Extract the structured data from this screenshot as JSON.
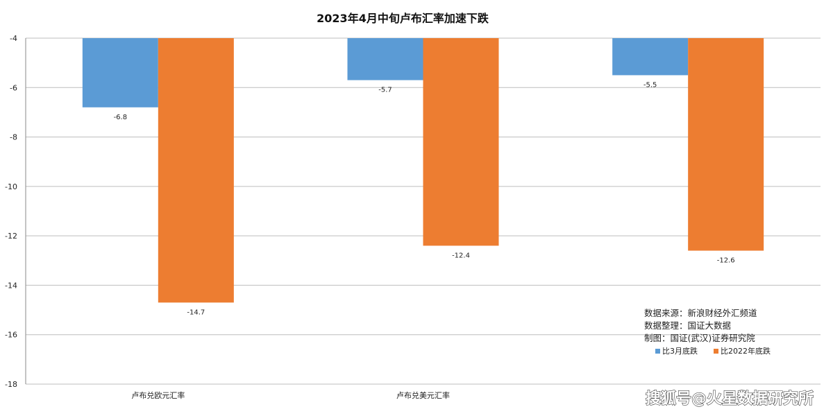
{
  "chart_data": {
    "type": "bar",
    "title": "2023年4月中旬卢布汇率加速下跌",
    "categories": [
      "卢布兑欧元汇率",
      "卢布兑美元汇率",
      ""
    ],
    "series": [
      {
        "name": "比3月底跌",
        "color": "#5B9BD5",
        "values": [
          -6.8,
          -5.7,
          -5.5
        ]
      },
      {
        "name": "比2022年底跌",
        "color": "#ED7D31",
        "values": [
          -14.7,
          -12.4,
          -12.6
        ]
      }
    ],
    "ylim": [
      -18,
      -4
    ],
    "yticks": [
      -4,
      -6,
      -8,
      -10,
      -12,
      -14,
      -16,
      -18
    ],
    "grid": true,
    "legend": "bottom-right",
    "xlabel": "",
    "ylabel": ""
  },
  "notes": [
    "数据来源：新浪财经外汇频道",
    "数据整理：国证大数据",
    "制图：国证(武汉)证券研究院"
  ],
  "watermark": "搜狐号@火星数据研究所"
}
